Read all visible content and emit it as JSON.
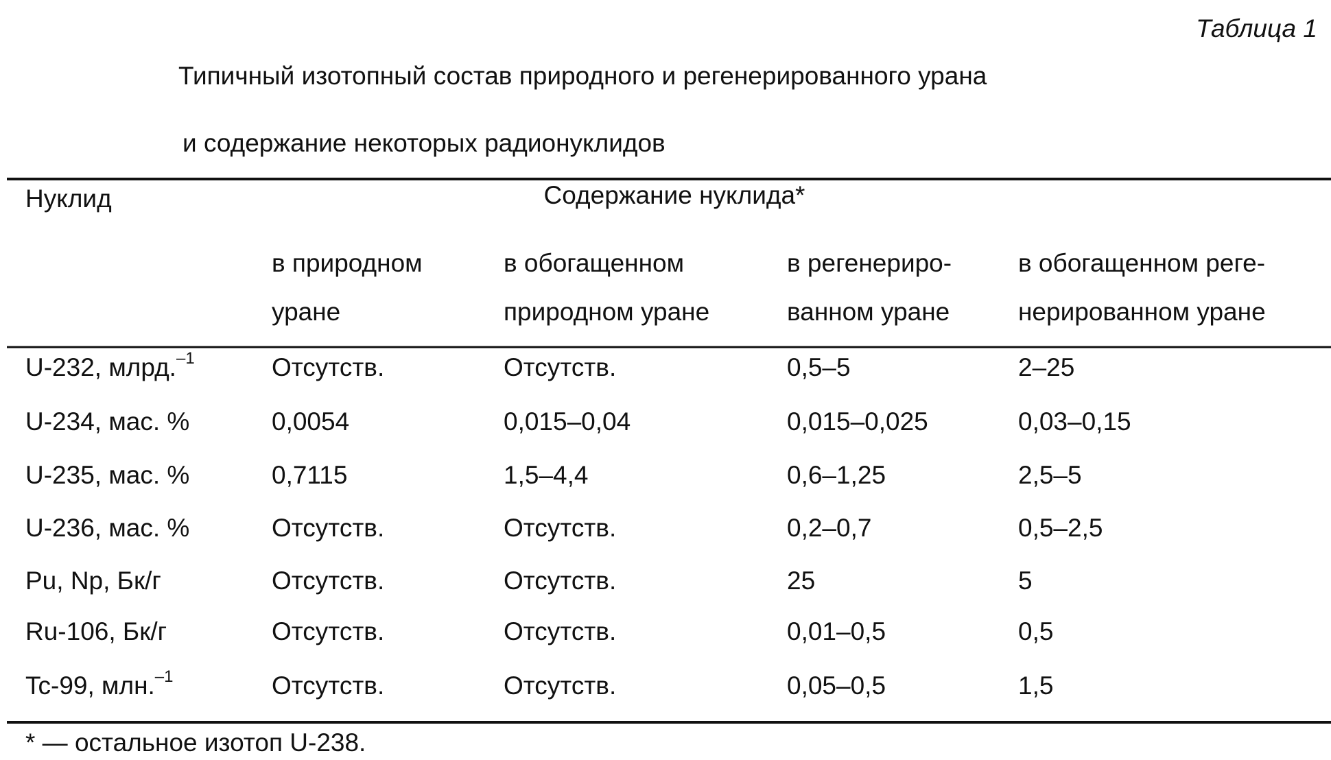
{
  "header": {
    "label": "Таблица 1",
    "title": [
      "Типичный изотопный состав природного и регенерированного урана",
      "и содержание некоторых радионуклидов"
    ]
  },
  "table": {
    "first_column_header": "Нуклид",
    "group_header": "Содержание нуклида*",
    "column_headers": [
      [
        "в природном",
        "уране"
      ],
      [
        "в обогащенном",
        "природном уране"
      ],
      [
        "в регенериро-",
        "ванном уране"
      ],
      [
        "в обогащенном реге-",
        "нерированном уране"
      ]
    ],
    "rows": [
      [
        {
          "text": "U-232, млрд.",
          "sup": "–1"
        },
        "Отсутств.",
        "Отсутств.",
        "0,5–5",
        "2–25"
      ],
      [
        "U-234, мас. %",
        "0,0054",
        "0,015–0,04",
        "0,015–0,025",
        "0,03–0,15"
      ],
      [
        "U-235, мас. %",
        "0,7115",
        "1,5–4,4",
        "0,6–1,25",
        "2,5–5"
      ],
      [
        "U-236, мас. %",
        "Отсутств.",
        "Отсутств.",
        "0,2–0,7",
        "0,5–2,5"
      ],
      [
        "Pu, Np, Бк/г",
        "Отсутств.",
        "Отсутств.",
        "25",
        "5"
      ],
      [
        "Ru-106, Бк/г",
        "Отсутств.",
        "Отсутств.",
        "0,01–0,5",
        "0,5"
      ],
      [
        {
          "text": "Tc-99, млн.",
          "sup": "–1"
        },
        "Отсутств.",
        "Отсутств.",
        "0,05–0,5",
        "1,5"
      ]
    ]
  },
  "footnote": "* — остальное изотоп U-238."
}
